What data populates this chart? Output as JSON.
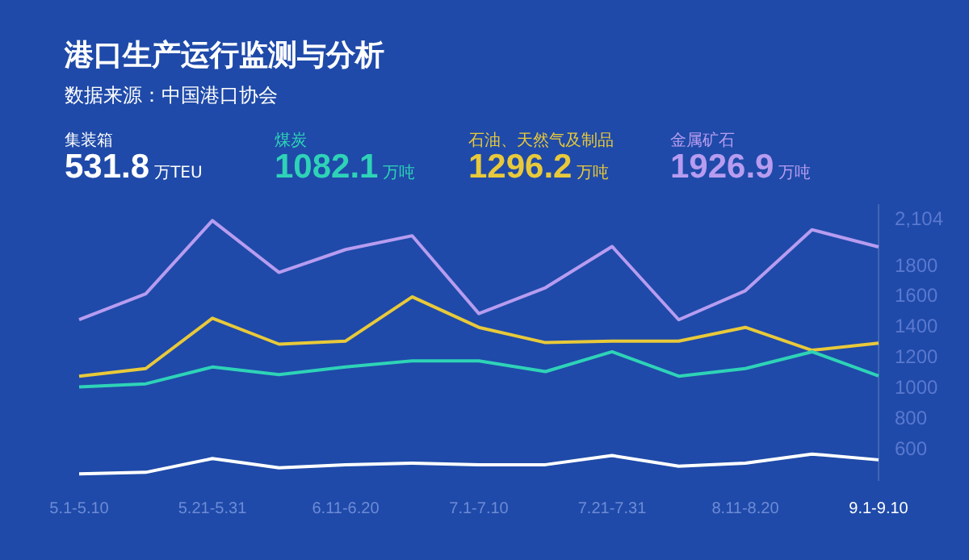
{
  "chart_data": {
    "type": "line",
    "title": "港口生产运行监测与分析",
    "subtitle": "数据来源：中国港口协会",
    "categories": [
      "5.1-5.10",
      null,
      "5.21-5.31",
      null,
      "6.11-6.20",
      null,
      "7.1-7.10",
      null,
      "7.21-7.31",
      null,
      "8.11-8.20",
      null,
      "9.1-9.10"
    ],
    "series": [
      {
        "name": "集装箱",
        "color": "#ffffff",
        "values": [
          440,
          450,
          540,
          480,
          500,
          510,
          500,
          500,
          560,
          490,
          510,
          570,
          531.8
        ]
      },
      {
        "name": "煤炭",
        "color": "#2ed3b7",
        "values": [
          1010,
          1030,
          1140,
          1090,
          1140,
          1180,
          1180,
          1110,
          1240,
          1080,
          1130,
          1240,
          1082.1
        ]
      },
      {
        "name": "石油、天然气及制品",
        "color": "#e8c93a",
        "values": [
          1080,
          1130,
          1460,
          1290,
          1310,
          1600,
          1400,
          1300,
          1310,
          1310,
          1400,
          1250,
          1296.2
        ]
      },
      {
        "name": "金属矿石",
        "color": "#b79cf0",
        "values": [
          1450,
          1620,
          2100,
          1760,
          1910,
          2000,
          1490,
          1660,
          1930,
          1450,
          1640,
          2040,
          1926.9
        ]
      }
    ],
    "annotations": [
      "531.8",
      "万TEU",
      "1082.1",
      "万吨",
      "1296.2",
      "万吨",
      "1926.9",
      "万吨"
    ],
    "ylim": [
      400,
      2200
    ],
    "yticks": [
      600,
      800,
      1000,
      1200,
      1400,
      1600,
      1800,
      {
        "value": 2104,
        "label": "2,104"
      }
    ],
    "legend": "top",
    "marker": "none",
    "line_style": "solid",
    "grid": false
  }
}
